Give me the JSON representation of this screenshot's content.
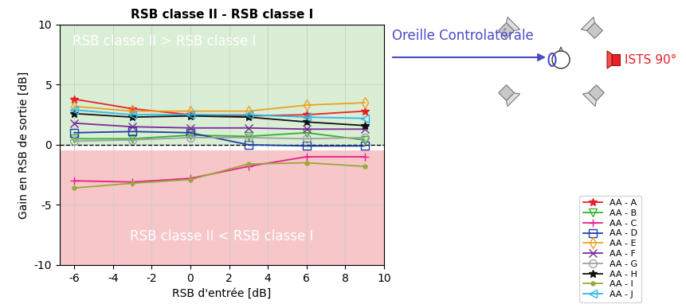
{
  "chart_data": {
    "type": "line",
    "title": "RSB classe II - RSB classe I",
    "x_label": "RSB d'entrée [dB]",
    "y_label": "Gain en RSB de sortie [dB]",
    "x": [
      -6,
      -3,
      0,
      3,
      6,
      9
    ],
    "series": [
      {
        "name": "AA - A",
        "color": "#e8202a",
        "marker": "star",
        "values": [
          3.8,
          3.0,
          2.5,
          2.4,
          2.5,
          2.8
        ]
      },
      {
        "name": "AA - B",
        "color": "#33b233",
        "marker": "triangle_down",
        "values": [
          0.5,
          0.5,
          0.8,
          0.7,
          1.0,
          0.4
        ]
      },
      {
        "name": "AA - C",
        "color": "#e8208a",
        "marker": "plus",
        "values": [
          -3.0,
          -3.1,
          -2.8,
          -1.8,
          -1.0,
          -1.0
        ]
      },
      {
        "name": "AA - D",
        "color": "#1f3fa8",
        "marker": "square",
        "values": [
          1.0,
          1.1,
          1.0,
          0.0,
          -0.1,
          -0.1
        ]
      },
      {
        "name": "AA - E",
        "color": "#f0a020",
        "marker": "diamond",
        "values": [
          3.2,
          2.8,
          2.8,
          2.8,
          3.3,
          3.5
        ]
      },
      {
        "name": "AA - F",
        "color": "#7a2a9a",
        "marker": "x",
        "values": [
          1.8,
          1.5,
          1.4,
          1.4,
          1.3,
          1.3
        ]
      },
      {
        "name": "AA - G",
        "color": "#a0a0a0",
        "marker": "circle",
        "values": [
          0.3,
          0.4,
          0.6,
          0.6,
          0.5,
          0.6
        ]
      },
      {
        "name": "AA - H",
        "color": "#111111",
        "marker": "star",
        "values": [
          2.6,
          2.3,
          2.4,
          2.3,
          1.9,
          1.6
        ]
      },
      {
        "name": "AA - I",
        "color": "#9aa83a",
        "marker": "point",
        "values": [
          -3.6,
          -3.2,
          -2.9,
          -1.6,
          -1.5,
          -1.8
        ]
      },
      {
        "name": "AA - J",
        "color": "#30b8e8",
        "marker": "triangle_left",
        "values": [
          2.9,
          2.5,
          2.5,
          2.5,
          2.3,
          2.2
        ]
      }
    ],
    "xlim": [
      -6.75,
      10
    ],
    "xticks": [
      -6,
      -4,
      -2,
      0,
      2,
      4,
      6,
      8,
      10
    ],
    "ylim": [
      -10,
      10
    ],
    "yticks": [
      -10,
      -5,
      0,
      5,
      10
    ],
    "grid": true,
    "legend": "lower right",
    "reference_line": {
      "y": 0,
      "color": "#000000",
      "line_style": "dashed"
    },
    "regions": [
      {
        "text": "RSB classe II > RSB classe I",
        "ymin": 0,
        "ymax": 10,
        "color": "#d9eed4"
      },
      {
        "text": "RSB classe II < RSB classe I",
        "ymin": -10,
        "ymax": -0.5,
        "color": "#f6c6c9"
      }
    ],
    "annotations": [
      {
        "text": "Oreille Controlatérale",
        "color": "#4b4bc8"
      },
      {
        "text": "ISTS 90°",
        "color": "#e8202a"
      }
    ]
  }
}
